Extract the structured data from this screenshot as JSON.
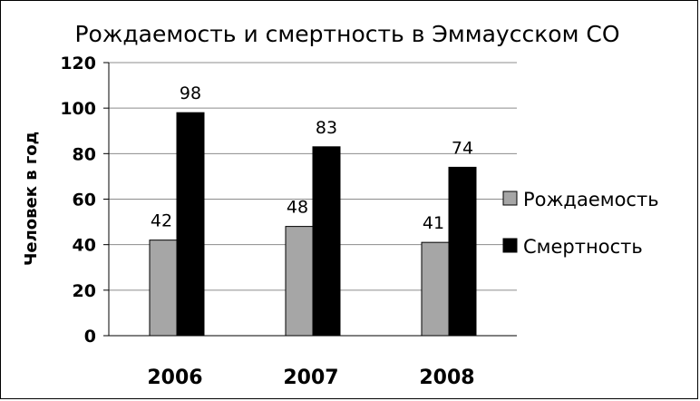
{
  "chart_data": {
    "type": "bar",
    "title": "Рождаемость и смертность в Эммаусском СО",
    "ylabel": "Человек в год",
    "xlabel": "",
    "categories": [
      "2006",
      "2007",
      "2008"
    ],
    "series": [
      {
        "name": "Рождаемость",
        "values": [
          42,
          48,
          41
        ],
        "color": "#a6a6a6"
      },
      {
        "name": "Смертность",
        "values": [
          98,
          83,
          74
        ],
        "color": "#000000"
      }
    ],
    "ylim": [
      0,
      120
    ],
    "yticks": [
      "0",
      "20",
      "40",
      "60",
      "80",
      "100",
      "120"
    ],
    "grid": true,
    "legend": "right",
    "data_labels": true
  }
}
